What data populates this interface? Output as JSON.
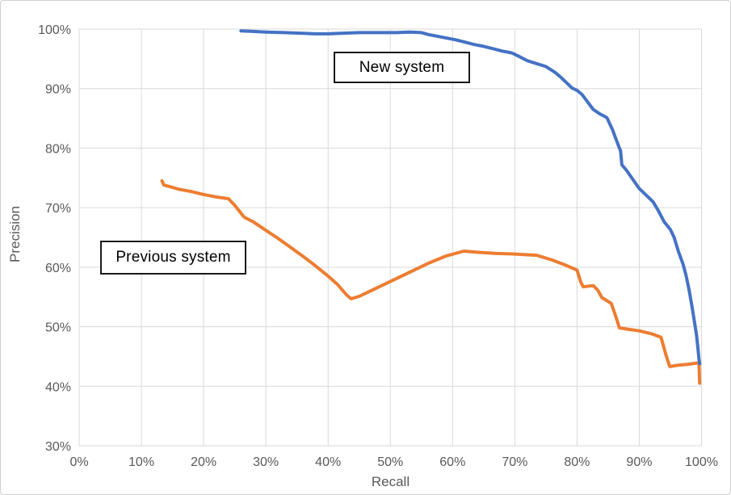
{
  "chart_data": {
    "type": "line",
    "title": "",
    "xlabel": "Recall",
    "ylabel": "Precision",
    "xlim": [
      0,
      100
    ],
    "ylim": [
      30,
      100
    ],
    "grid": true,
    "legend_position": "inline-text-boxes",
    "grid_color": "#d9d9d9",
    "tick_color": "#595959",
    "x_tick_labels": [
      "0%",
      "10%",
      "20%",
      "30%",
      "40%",
      "50%",
      "60%",
      "70%",
      "80%",
      "90%",
      "100%"
    ],
    "y_tick_labels": [
      "30%",
      "40%",
      "50%",
      "60%",
      "70%",
      "80%",
      "90%",
      "100%"
    ],
    "annotations": [
      {
        "text": "New system",
        "x": 53,
        "y": 89
      },
      {
        "text": "Previous system",
        "x": 17,
        "y": 57
      }
    ],
    "series": [
      {
        "name": "Previous system",
        "color": "#ED7D31",
        "points": [
          [
            13.3,
            74.5
          ],
          [
            13.6,
            73.8
          ],
          [
            14.3,
            73.6
          ],
          [
            16,
            73.1
          ],
          [
            18,
            72.7
          ],
          [
            20,
            72.2
          ],
          [
            22,
            71.8
          ],
          [
            24,
            71.5
          ],
          [
            25,
            70.4
          ],
          [
            26.5,
            68.4
          ],
          [
            28,
            67.6
          ],
          [
            30,
            66.2
          ],
          [
            32,
            64.8
          ],
          [
            34,
            63.3
          ],
          [
            36,
            61.8
          ],
          [
            38,
            60.2
          ],
          [
            40,
            58.5
          ],
          [
            41.5,
            57.1
          ],
          [
            43,
            55.3
          ],
          [
            43.7,
            54.7
          ],
          [
            45,
            55.1
          ],
          [
            48,
            56.6
          ],
          [
            52,
            58.6
          ],
          [
            56,
            60.6
          ],
          [
            59,
            61.9
          ],
          [
            61.8,
            62.7
          ],
          [
            64,
            62.5
          ],
          [
            67,
            62.3
          ],
          [
            70,
            62.2
          ],
          [
            73.5,
            62.0
          ],
          [
            76,
            61.2
          ],
          [
            78,
            60.4
          ],
          [
            80,
            59.5
          ],
          [
            80.6,
            57.5
          ],
          [
            81,
            56.7
          ],
          [
            82.6,
            56.9
          ],
          [
            83.3,
            56.2
          ],
          [
            84,
            54.9
          ],
          [
            85.5,
            53.9
          ],
          [
            86.3,
            51.5
          ],
          [
            86.8,
            49.8
          ],
          [
            88,
            49.6
          ],
          [
            90,
            49.3
          ],
          [
            92,
            48.8
          ],
          [
            93.5,
            48.2
          ],
          [
            94.3,
            45.2
          ],
          [
            94.9,
            43.3
          ],
          [
            96,
            43.5
          ],
          [
            98,
            43.7
          ],
          [
            99.3,
            43.9
          ],
          [
            99.6,
            43.8
          ],
          [
            99.7,
            40.5
          ]
        ]
      },
      {
        "name": "New system",
        "color": "#4472C4",
        "points": [
          [
            26,
            99.7
          ],
          [
            28,
            99.6
          ],
          [
            30,
            99.5
          ],
          [
            33,
            99.4
          ],
          [
            36,
            99.3
          ],
          [
            38,
            99.2
          ],
          [
            40,
            99.2
          ],
          [
            42,
            99.3
          ],
          [
            45,
            99.4
          ],
          [
            48,
            99.4
          ],
          [
            51,
            99.4
          ],
          [
            53,
            99.5
          ],
          [
            55,
            99.4
          ],
          [
            56,
            99.1
          ],
          [
            57.5,
            98.8
          ],
          [
            59,
            98.5
          ],
          [
            60.5,
            98.2
          ],
          [
            62,
            97.8
          ],
          [
            63.5,
            97.4
          ],
          [
            65,
            97.1
          ],
          [
            66.5,
            96.7
          ],
          [
            68,
            96.3
          ],
          [
            69.5,
            96.0
          ],
          [
            70.5,
            95.5
          ],
          [
            72,
            94.7
          ],
          [
            73.5,
            94.2
          ],
          [
            75,
            93.7
          ],
          [
            76.5,
            92.7
          ],
          [
            77.5,
            91.8
          ],
          [
            78.5,
            90.8
          ],
          [
            79.2,
            90.1
          ],
          [
            80,
            89.7
          ],
          [
            80.8,
            89.0
          ],
          [
            81.6,
            87.9
          ],
          [
            82.6,
            86.5
          ],
          [
            83.6,
            85.8
          ],
          [
            84.8,
            85.1
          ],
          [
            85.7,
            83.1
          ],
          [
            86.3,
            81.4
          ],
          [
            87,
            79.5
          ],
          [
            87.2,
            77.2
          ],
          [
            88,
            76.2
          ],
          [
            89,
            74.7
          ],
          [
            90,
            73.2
          ],
          [
            91,
            72.2
          ],
          [
            92.2,
            71.0
          ],
          [
            93,
            69.6
          ],
          [
            94,
            67.6
          ],
          [
            95,
            66.3
          ],
          [
            95.6,
            65.0
          ],
          [
            96.3,
            62.6
          ],
          [
            97,
            60.6
          ],
          [
            97.5,
            58.7
          ],
          [
            98,
            56.2
          ],
          [
            98.4,
            53.8
          ],
          [
            98.8,
            51.2
          ],
          [
            99.2,
            48.6
          ],
          [
            99.4,
            46.6
          ],
          [
            99.6,
            44.5
          ],
          [
            99.7,
            43.8
          ]
        ]
      }
    ]
  }
}
